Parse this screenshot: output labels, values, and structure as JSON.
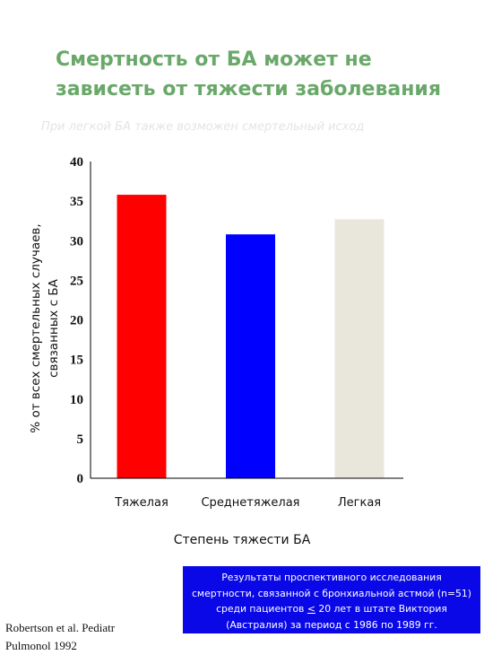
{
  "slide": {
    "title": "Смертность от БА может не зависеть от тяжести заболевания",
    "subtitle": "При легкой БА также возможен смертельный исход"
  },
  "chart_data": {
    "type": "bar",
    "categories": [
      "Тяжелая",
      "Среднетяжелая",
      "Легкая"
    ],
    "values": [
      35.8,
      30.8,
      32.7
    ],
    "colors": [
      "#ff0000",
      "#0000ff",
      "#e9e6dc"
    ],
    "ylim": [
      0,
      40
    ],
    "yticks": [
      0,
      5,
      10,
      15,
      20,
      25,
      30,
      35,
      40
    ],
    "ylabel_lines": [
      "% от всех смертельных случаев,",
      "связанных с БА"
    ],
    "xlabel": "Степень тяжести БА",
    "grid": false,
    "legend": "none"
  },
  "note": {
    "line1": "Результаты проспективного исследования",
    "line2": "смертности, связанной с бронхиальной астмой (n=51)",
    "line3_pre": "среди пациентов ",
    "line3_sym": "<",
    "line3_post": " 20 лет в штате Виктория",
    "line4": "(Австралия) за период с 1986 по 1989 гг."
  },
  "citation": {
    "line1": "Robertson et al.  Pediatr",
    "line2": "Pulmonol 1992"
  }
}
